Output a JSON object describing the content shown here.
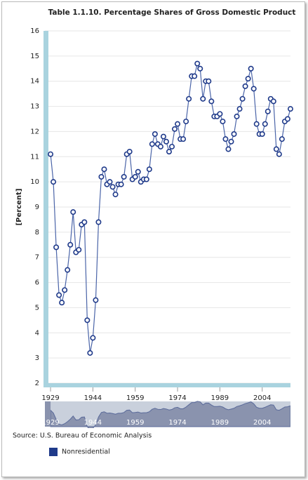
{
  "chart_data": {
    "type": "line",
    "title": "Table 1.1.10. Percentage Shares of Gross Domestic Product",
    "y_label": "[Percent]",
    "source": "Source: U.S. Bureau of Economic Analysis",
    "x": [
      1929,
      1930,
      1931,
      1932,
      1933,
      1934,
      1935,
      1936,
      1937,
      1938,
      1939,
      1940,
      1941,
      1942,
      1943,
      1944,
      1945,
      1946,
      1947,
      1948,
      1949,
      1950,
      1951,
      1952,
      1953,
      1954,
      1955,
      1956,
      1957,
      1958,
      1959,
      1960,
      1961,
      1962,
      1963,
      1964,
      1965,
      1966,
      1967,
      1968,
      1969,
      1970,
      1971,
      1972,
      1973,
      1974,
      1975,
      1976,
      1977,
      1978,
      1979,
      1980,
      1981,
      1982,
      1983,
      1984,
      1985,
      1986,
      1987,
      1988,
      1989,
      1990,
      1991,
      1992,
      1993,
      1994,
      1995,
      1996,
      1997,
      1998,
      1999,
      2000,
      2001,
      2002,
      2003,
      2004,
      2005,
      2006,
      2007,
      2008,
      2009,
      2010,
      2011,
      2012,
      2013,
      2014
    ],
    "series": [
      {
        "name": "Nonresidential",
        "color": "#1f3a8a",
        "values": [
          11.1,
          10.0,
          7.4,
          5.5,
          5.2,
          5.7,
          6.5,
          7.5,
          8.8,
          7.2,
          7.3,
          8.3,
          8.4,
          4.5,
          3.2,
          3.8,
          5.3,
          8.4,
          10.2,
          10.5,
          9.9,
          10.0,
          9.8,
          9.5,
          9.9,
          9.9,
          10.2,
          11.1,
          11.2,
          10.1,
          10.2,
          10.4,
          10.0,
          10.1,
          10.1,
          10.5,
          11.5,
          11.9,
          11.5,
          11.4,
          11.8,
          11.6,
          11.2,
          11.4,
          12.1,
          12.3,
          11.7,
          11.7,
          12.4,
          13.3,
          14.2,
          14.2,
          14.7,
          14.5,
          13.3,
          14.0,
          14.0,
          13.2,
          12.6,
          12.6,
          12.7,
          12.4,
          11.7,
          11.3,
          11.6,
          11.9,
          12.6,
          12.9,
          13.3,
          13.8,
          14.1,
          14.5,
          13.7,
          12.3,
          11.9,
          11.9,
          12.3,
          12.8,
          13.3,
          13.2,
          11.3,
          11.1,
          11.7,
          12.4,
          12.5,
          12.9
        ]
      }
    ],
    "xlim": [
      1927,
      2015
    ],
    "xticks": [
      1929,
      1944,
      1959,
      1974,
      1989,
      2004
    ],
    "ylim": [
      2,
      16
    ],
    "yticks": [
      2,
      3,
      4,
      5,
      6,
      7,
      8,
      9,
      10,
      11,
      12,
      13,
      14,
      15,
      16
    ],
    "grid": true
  }
}
